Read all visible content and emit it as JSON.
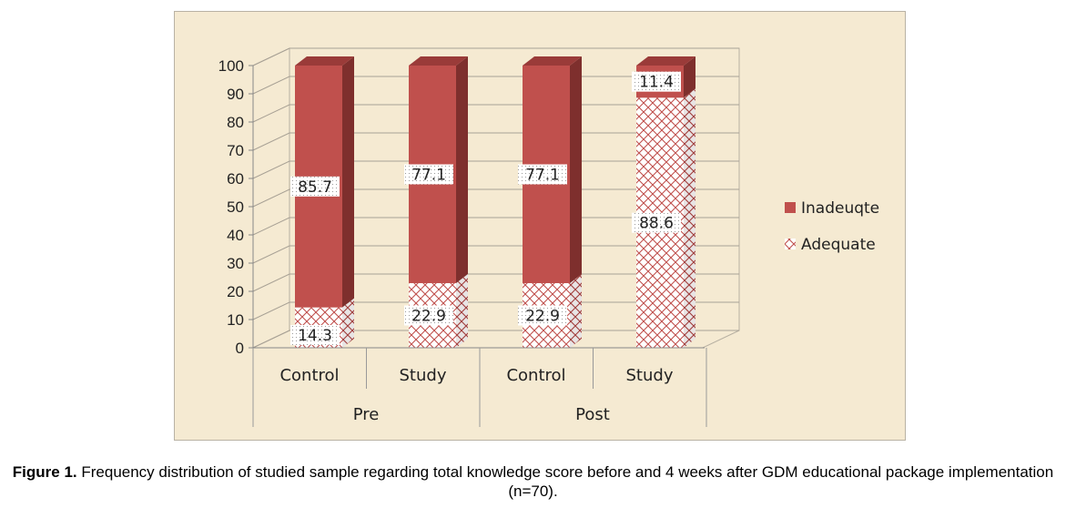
{
  "chart_data": {
    "type": "bar",
    "stacked": true,
    "three_d": true,
    "categories": [
      "Control",
      "Study",
      "Control",
      "Study"
    ],
    "groups": [
      {
        "label": "Pre",
        "categories": [
          "Control",
          "Study"
        ]
      },
      {
        "label": "Post",
        "categories": [
          "Control",
          "Study"
        ]
      }
    ],
    "series": [
      {
        "name": "Adequate",
        "values": [
          14.3,
          22.9,
          22.9,
          88.6
        ],
        "labels": [
          "14.3",
          "22.9",
          "22.9",
          "88.6"
        ],
        "color": "#ffffff",
        "pattern": "crosshatch",
        "pattern_color": "#c0504d"
      },
      {
        "name": "Inadeuqte",
        "values": [
          85.7,
          77.1,
          77.1,
          11.4
        ],
        "labels": [
          "85.7",
          "77.1",
          "77.1",
          "11.4"
        ],
        "color": "#c0504d"
      }
    ],
    "ylim": [
      0,
      100
    ],
    "yticks": [
      "0",
      "10",
      "20",
      "30",
      "40",
      "50",
      "60",
      "70",
      "80",
      "90",
      "100"
    ],
    "grid": true,
    "legend_position": "right",
    "background_color": "#f5ead2"
  },
  "caption": {
    "label": "Figure 1.",
    "text": " Frequency distribution of studied sample regarding total knowledge score before and 4 weeks after GDM educational package implementation (n=70)."
  }
}
